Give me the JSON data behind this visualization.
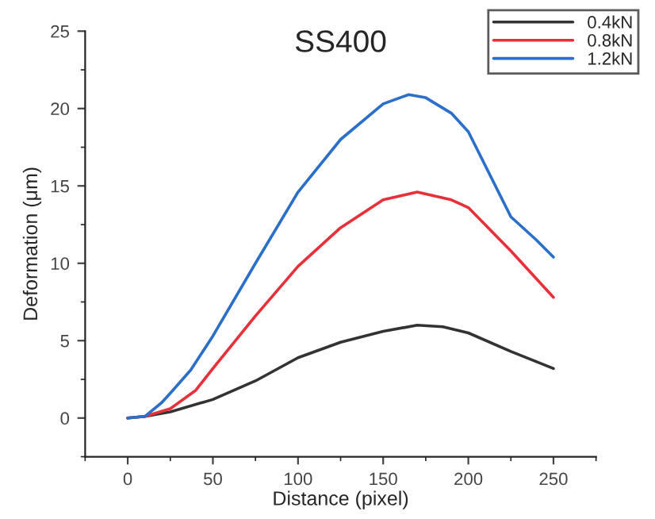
{
  "chart_data": {
    "type": "line",
    "title": "SS400",
    "xlabel": "Distance (pixel)",
    "ylabel": "Deformation (μm)",
    "xlim": [
      -25,
      275
    ],
    "xticks": [
      0,
      50,
      100,
      150,
      200,
      250
    ],
    "ylim": [
      -2.5,
      25
    ],
    "yticks": [
      0,
      5,
      10,
      15,
      20,
      25
    ],
    "grid": false,
    "legend": "top right",
    "line_style": "solid",
    "marker": "none",
    "series": [
      {
        "name": "0.4kN",
        "color": "#333333",
        "x": [
          0,
          10,
          25,
          50,
          75,
          100,
          125,
          150,
          170,
          185,
          200,
          225,
          250
        ],
        "values": [
          0,
          0.1,
          0.4,
          1.2,
          2.4,
          3.9,
          4.9,
          5.6,
          6.0,
          5.9,
          5.5,
          4.3,
          3.2
        ]
      },
      {
        "name": "0.8kN",
        "color": "#e8303a",
        "x": [
          0,
          10,
          25,
          40,
          50,
          75,
          100,
          125,
          150,
          170,
          190,
          200,
          225,
          250
        ],
        "values": [
          0,
          0.1,
          0.6,
          1.8,
          3.2,
          6.6,
          9.8,
          12.3,
          14.1,
          14.6,
          14.1,
          13.6,
          10.8,
          7.8
        ]
      },
      {
        "name": "1.2kN",
        "color": "#2a6fc9",
        "x": [
          0,
          10,
          20,
          25,
          37,
          50,
          75,
          100,
          125,
          150,
          165,
          175,
          190,
          200,
          225,
          240,
          250
        ],
        "values": [
          0,
          0.1,
          1.0,
          1.6,
          3.1,
          5.3,
          10.0,
          14.6,
          18.0,
          20.3,
          20.9,
          20.7,
          19.7,
          18.5,
          13.0,
          11.5,
          10.4
        ]
      }
    ]
  }
}
